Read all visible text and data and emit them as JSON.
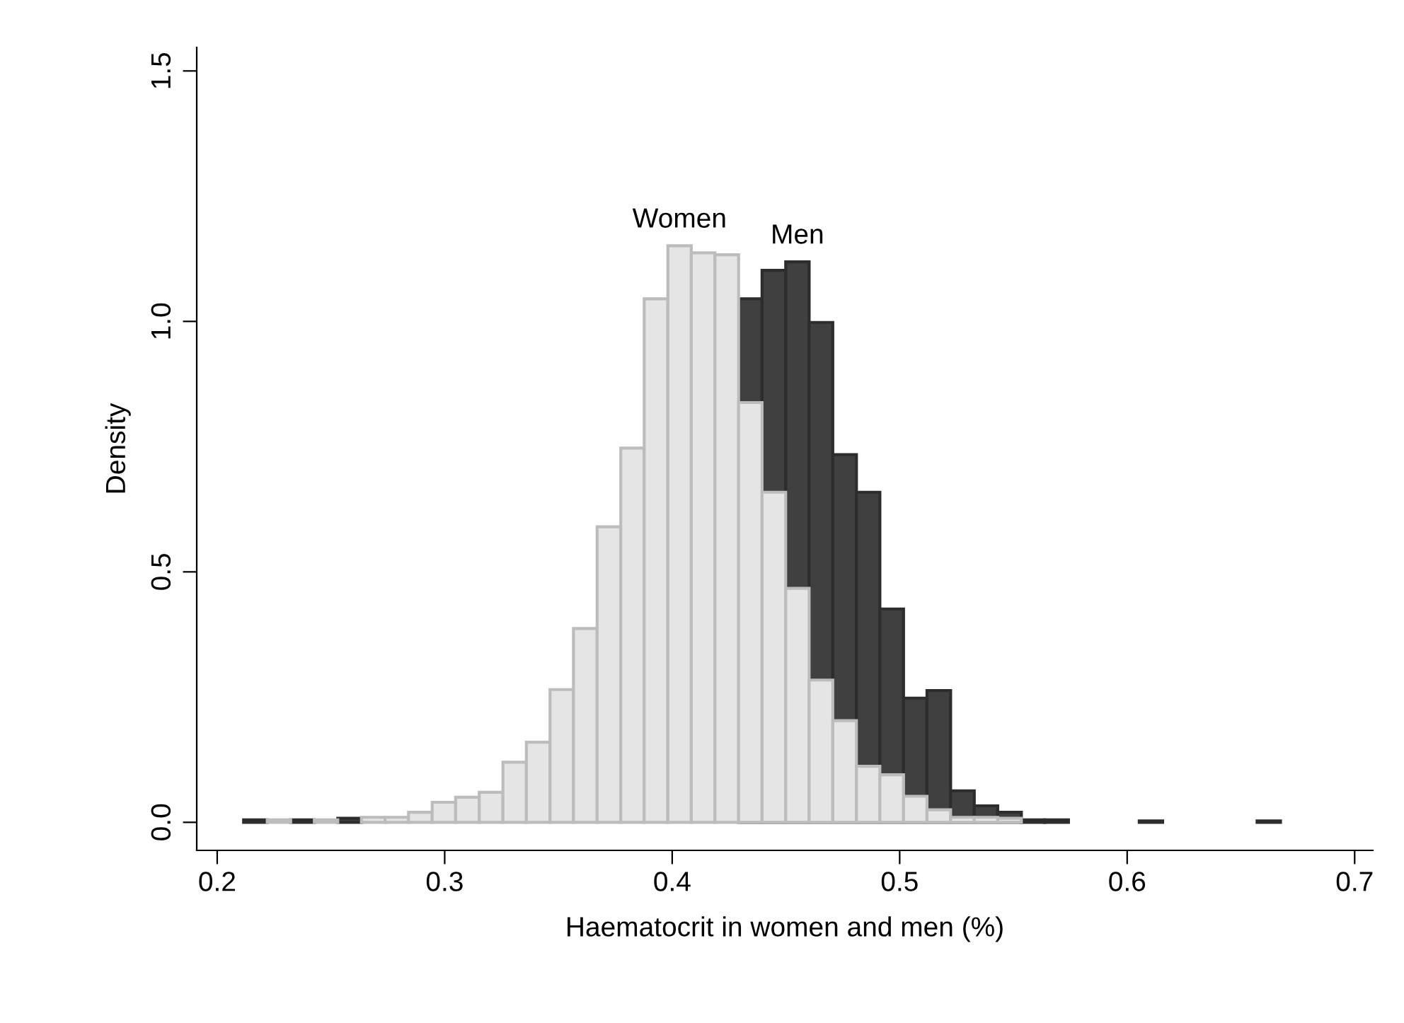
{
  "chart_data": {
    "type": "histogram",
    "xlabel": "Haematocrit in women and men (%)",
    "ylabel": "Density",
    "bins": [
      0.2116,
      0.222,
      0.2323,
      0.2427,
      0.253,
      0.2634,
      0.2738,
      0.2841,
      0.2945,
      0.3048,
      0.3152,
      0.3256,
      0.3359,
      0.3463,
      0.3566,
      0.367,
      0.3774,
      0.3877,
      0.3981,
      0.4084,
      0.4188,
      0.4292,
      0.4395,
      0.4499,
      0.4602,
      0.4706,
      0.481,
      0.4913,
      0.5017,
      0.512,
      0.5224,
      0.5328,
      0.5431,
      0.5535,
      0.5638,
      0.5742,
      0.5846,
      0.5949,
      0.6053,
      0.6156,
      0.626,
      0.6364,
      0.6467,
      0.6571,
      0.6674
    ],
    "series": [
      {
        "name": "Men",
        "color": "#404040",
        "values": [
          0.005,
          null,
          0.005,
          null,
          0.008,
          null,
          null,
          null,
          null,
          null,
          null,
          null,
          null,
          null,
          null,
          null,
          null,
          null,
          null,
          null,
          null,
          1.045,
          1.102,
          1.119,
          0.998,
          0.734,
          0.659,
          0.426,
          0.248,
          0.263,
          0.063,
          0.033,
          0.02,
          0.005,
          0.005,
          null,
          null,
          null,
          0.003,
          null,
          null,
          null,
          null,
          0.003
        ]
      },
      {
        "name": "Women",
        "color": "#e5e5e5",
        "values": [
          null,
          0.005,
          null,
          0.005,
          null,
          0.01,
          0.01,
          0.02,
          0.04,
          0.05,
          0.06,
          0.12,
          0.16,
          0.265,
          0.387,
          0.59,
          0.747,
          1.045,
          1.151,
          1.137,
          1.133,
          0.838,
          0.659,
          0.467,
          0.284,
          0.203,
          0.112,
          0.095,
          0.052,
          0.025,
          0.01,
          0.01,
          0.008,
          null,
          null,
          null,
          null,
          null,
          null,
          null,
          null,
          null,
          null,
          null
        ]
      }
    ],
    "xlim": [
      0.191,
      0.708
    ],
    "xticks": [
      0.2,
      0.3,
      0.4,
      0.5,
      0.6,
      0.7
    ],
    "ylim": [
      -0.056,
      1.547
    ],
    "yticks": [
      {
        "value": 0,
        "label": "0.0"
      },
      {
        "value": 0.5,
        "label": "0.5"
      },
      {
        "value": 1.0,
        "label": "1.0"
      },
      {
        "value": 1.5,
        "label": "1.5"
      }
    ],
    "grid": false,
    "legend": false
  }
}
